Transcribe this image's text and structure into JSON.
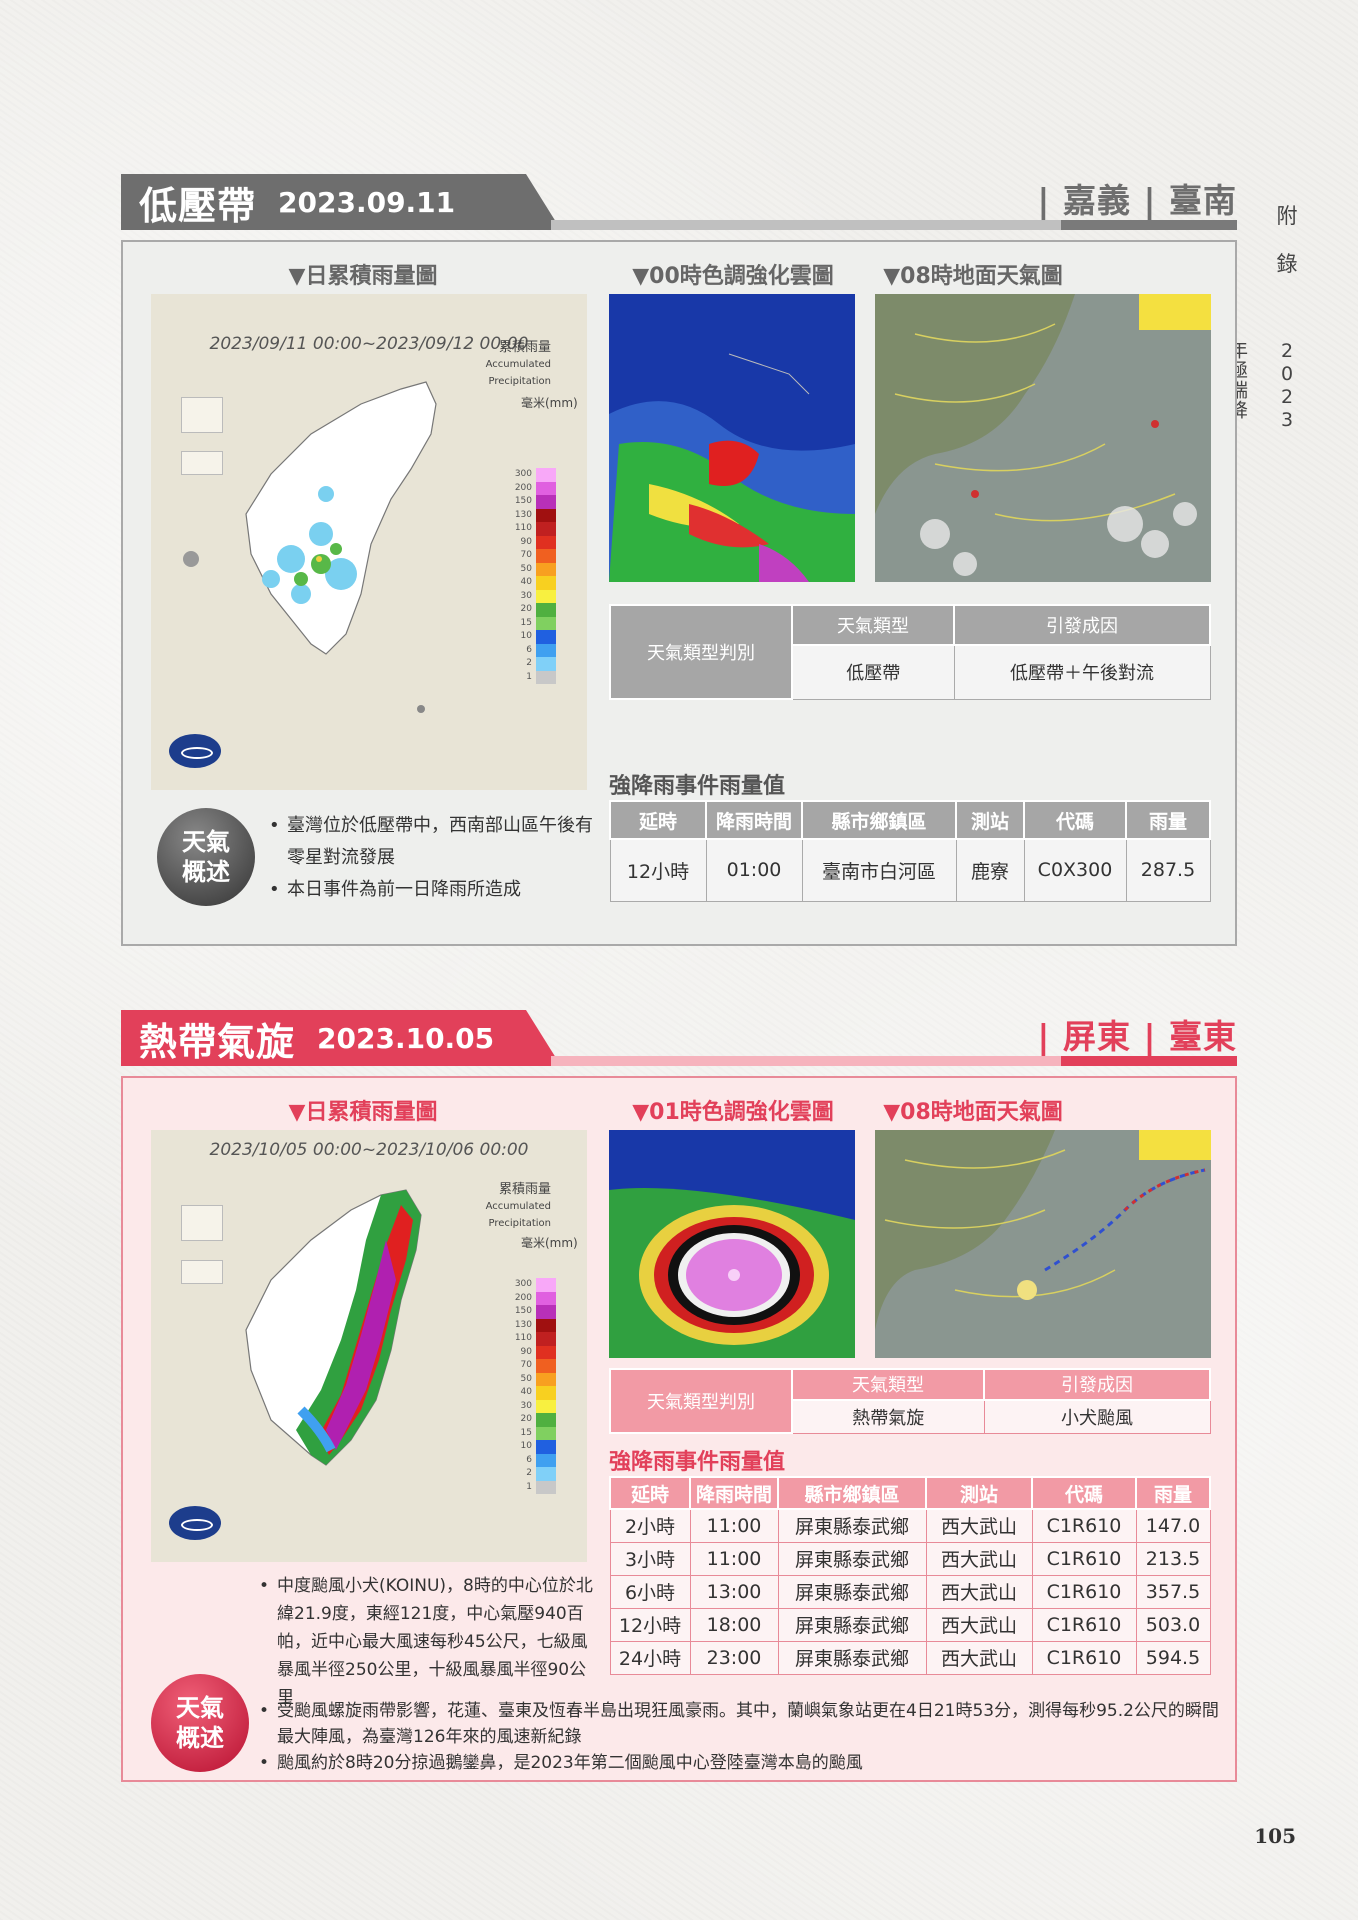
{
  "side": {
    "c1": "附",
    "c2": "錄",
    "title": "2023年極端降雨事件－每日天氣圖卡"
  },
  "page_number": "105",
  "map_common": {
    "acc_zh": "累積雨量",
    "acc_en": "Accumulated Precipitation",
    "unit": "毫米(mm)",
    "legend": [
      "300",
      "200",
      "150",
      "130",
      "110",
      "90",
      "70",
      "50",
      "40",
      "30",
      "20",
      "15",
      "10",
      "6",
      "2",
      "1"
    ]
  },
  "cols": [
    "延時",
    "降雨時間",
    "縣市鄉鎮區",
    "測站",
    "代碼",
    "雨量"
  ],
  "s1": {
    "title": "低壓帶",
    "date": "2023.09.11",
    "region": "| 嘉義 | 臺南",
    "caps": {
      "rain": "▼日累積雨量圖",
      "cloud": "▼00時色調強化雲圖",
      "sfc": "▼08時地面天氣圖"
    },
    "map_date": "2023/09/11 00:00~2023/09/12 00:00",
    "type_table": {
      "label": "天氣類型判別",
      "h1": "天氣類型",
      "h2": "引發成因",
      "v1": "低壓帶",
      "v2": "低壓帶＋午後對流"
    },
    "event_title": "強降雨事件雨量值",
    "rows": [
      [
        "12小時",
        "01:00",
        "臺南市白河區",
        "鹿寮",
        "C0X300",
        "287.5"
      ]
    ],
    "badge": "天氣 概述",
    "desc": [
      "臺灣位於低壓帶中，西南部山區午後有零星對流發展",
      "本日事件為前一日降雨所造成"
    ]
  },
  "s2": {
    "title": "熱帶氣旋",
    "date": "2023.10.05",
    "region": "| 屏東 | 臺東",
    "caps": {
      "rain": "▼日累積雨量圖",
      "cloud": "▼01時色調強化雲圖",
      "sfc": "▼08時地面天氣圖"
    },
    "map_date": "2023/10/05 00:00~2023/10/06 00:00",
    "type_table": {
      "label": "天氣類型判別",
      "h1": "天氣類型",
      "h2": "引發成因",
      "v1": "熱帶氣旋",
      "v2": "小犬颱風"
    },
    "event_title": "強降雨事件雨量值",
    "rows": [
      [
        "2小時",
        "11:00",
        "屏東縣泰武鄉",
        "西大武山",
        "C1R610",
        "147.0"
      ],
      [
        "3小時",
        "11:00",
        "屏東縣泰武鄉",
        "西大武山",
        "C1R610",
        "213.5"
      ],
      [
        "6小時",
        "13:00",
        "屏東縣泰武鄉",
        "西大武山",
        "C1R610",
        "357.5"
      ],
      [
        "12小時",
        "18:00",
        "屏東縣泰武鄉",
        "西大武山",
        "C1R610",
        "503.0"
      ],
      [
        "24小時",
        "23:00",
        "屏東縣泰武鄉",
        "西大武山",
        "C1R610",
        "594.5"
      ]
    ],
    "badge": "天氣 概述",
    "desc": [
      "中度颱風小犬(KOINU)，8時的中心位於北緯21.9度，東經121度，中心氣壓940百帕，近中心最大風速每秒45公尺，七級風暴風半徑250公里，十級風暴風半徑90公里",
      "受颱風螺旋雨帶影響，花蓮、臺東及恆春半島出現狂風豪雨。其中，蘭嶼氣象站更在4日21時53分，測得每秒95.2公尺的瞬間最大陣風，為臺灣126年來的風速新紀錄",
      "颱風約於8時20分掠過鵝鑾鼻，是2023年第二個颱風中心登陸臺灣本島的颱風"
    ]
  }
}
